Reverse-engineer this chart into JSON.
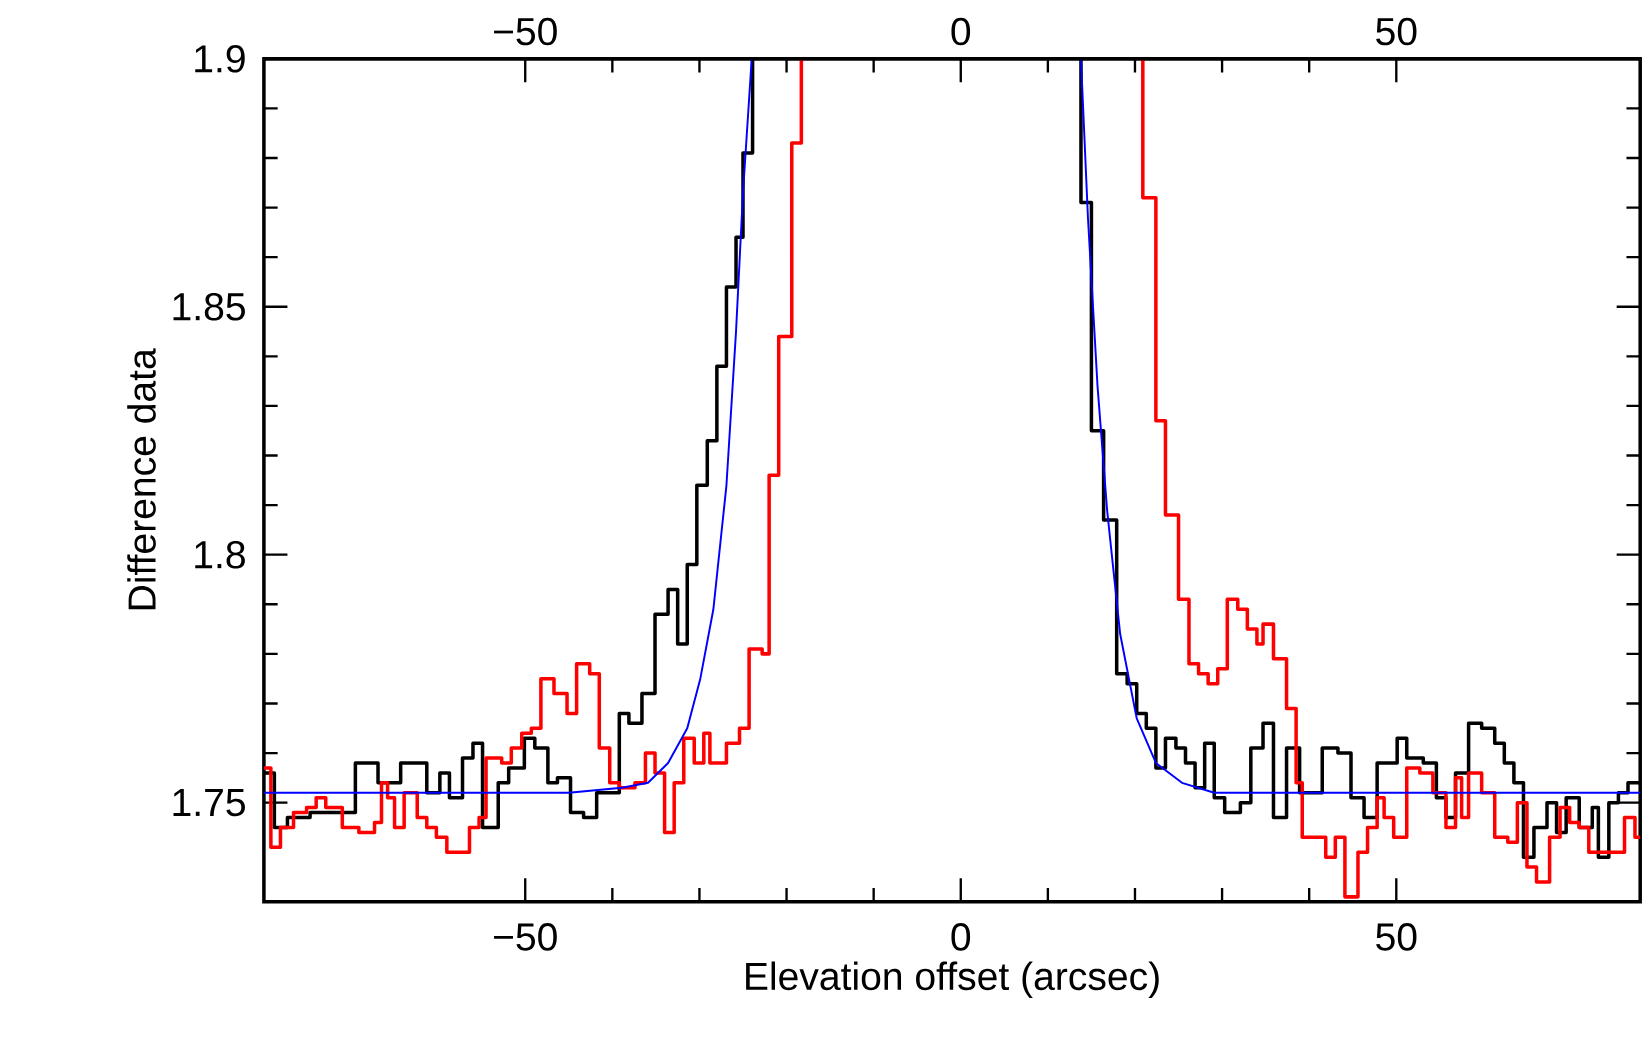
{
  "chart_data": {
    "type": "step",
    "xlabel": "Elevation offset (arcsec)",
    "ylabel": "Difference data",
    "xlim": [
      -80,
      78
    ],
    "ylim": [
      1.73,
      1.9
    ],
    "xticks": [
      {
        "value": -50,
        "label": "−50"
      },
      0,
      50
    ],
    "x2lim": [
      -80,
      78
    ],
    "x2ticks": [
      {
        "value": -50,
        "label": "−50"
      },
      0,
      50
    ],
    "yticks": [
      1.75,
      1.8,
      1.85,
      1.9
    ],
    "tick_labels": "xy",
    "series": [
      {
        "color": "#000000",
        "x": [
          -80.0,
          -78.8,
          -77.3,
          -74.7,
          -69.5,
          -66.9,
          -64.3,
          -61.3,
          -59.8,
          -58.7,
          -57.2,
          -56.0,
          -54.9,
          -53.1,
          -51.9,
          -50.1,
          -48.9,
          -47.4,
          -46.3,
          -44.8,
          -43.3,
          -41.8,
          -39.2,
          -38.1,
          -36.6,
          -35.1,
          -33.6,
          -32.5,
          -31.4,
          -30.3,
          -29.1,
          -28.0,
          -26.9,
          -25.8,
          -25.0,
          -23.9,
          0,
          13.8,
          13.8,
          15.0,
          16.4,
          17.9,
          19.1,
          20.2,
          21.3,
          22.4,
          23.5,
          24.7,
          25.8,
          26.9,
          28.0,
          29.1,
          30.3,
          32.1,
          33.3,
          34.7,
          35.9,
          37.4,
          38.9,
          41.5,
          43.3,
          44.8,
          46.3,
          47.8,
          50.1,
          51.2,
          53.1,
          54.6,
          55.7,
          56.8,
          58.3,
          59.8,
          61.3,
          62.4,
          63.5,
          64.6,
          65.8,
          67.3,
          68.4,
          69.5,
          71.0,
          72.5,
          73.2,
          74.4,
          75.5,
          76.6,
          78
        ],
        "values": [
          1.756,
          1.745,
          1.747,
          1.748,
          1.758,
          1.754,
          1.758,
          1.752,
          1.756,
          1.751,
          1.759,
          1.762,
          1.745,
          1.754,
          1.757,
          1.763,
          1.761,
          1.754,
          1.755,
          1.748,
          1.747,
          1.752,
          1.768,
          1.766,
          1.772,
          1.788,
          1.793,
          1.782,
          1.798,
          1.814,
          1.823,
          1.838,
          1.854,
          1.864,
          1.881,
          1.9,
          null,
          1.9,
          1.871,
          1.825,
          1.807,
          1.776,
          1.774,
          1.768,
          1.765,
          1.757,
          1.763,
          1.761,
          1.758,
          1.753,
          1.762,
          1.751,
          1.748,
          1.75,
          1.761,
          1.766,
          1.747,
          1.761,
          1.752,
          1.761,
          1.76,
          1.751,
          1.747,
          1.758,
          1.763,
          1.759,
          1.758,
          1.751,
          1.747,
          1.756,
          1.766,
          1.765,
          1.762,
          1.758,
          1.754,
          1.739,
          1.745,
          1.75,
          1.744,
          1.751,
          1.745,
          1.749,
          1.739,
          1.75,
          1.752,
          1.754,
          1.754
        ]
      },
      {
        "color": "#ff0000",
        "x": [
          -80.0,
          -79.2,
          -78.1,
          -76.6,
          -75.1,
          -74.0,
          -72.9,
          -71.0,
          -69.1,
          -67.3,
          -66.5,
          -65.8,
          -65.0,
          -63.9,
          -62.4,
          -61.3,
          -60.2,
          -59.0,
          -56.4,
          -55.3,
          -54.5,
          -52.7,
          -51.6,
          -50.4,
          -49.3,
          -48.2,
          -46.7,
          -45.2,
          -44.1,
          -42.6,
          -41.5,
          -40.3,
          -39.2,
          -37.4,
          -36.2,
          -35.1,
          -34.0,
          -32.9,
          -31.8,
          -30.6,
          -29.5,
          -28.8,
          -26.9,
          -25.4,
          -24.3,
          -22.8,
          -22.0,
          -20.9,
          -19.4,
          -18.3,
          0,
          20.9,
          20.9,
          22.4,
          23.5,
          25.0,
          26.2,
          27.3,
          28.4,
          29.5,
          30.6,
          31.8,
          32.9,
          34.0,
          34.7,
          35.9,
          37.4,
          38.5,
          39.2,
          41.9,
          43.0,
          44.1,
          45.6,
          46.7,
          47.8,
          48.6,
          49.7,
          51.2,
          52.7,
          54.2,
          55.7,
          56.8,
          57.5,
          58.3,
          59.8,
          61.3,
          62.8,
          63.9,
          65.0,
          66.1,
          67.6,
          68.8,
          69.9,
          71.0,
          72.1,
          73.6,
          74.7,
          76.2,
          77.4,
          78
        ],
        "values": [
          1.757,
          1.741,
          1.745,
          1.748,
          1.749,
          1.751,
          1.749,
          1.745,
          1.744,
          1.746,
          1.754,
          1.751,
          1.745,
          1.752,
          1.747,
          1.745,
          1.743,
          1.74,
          1.745,
          1.747,
          1.759,
          1.758,
          1.761,
          1.764,
          1.765,
          1.775,
          1.772,
          1.768,
          1.778,
          1.776,
          1.761,
          1.754,
          1.753,
          1.754,
          1.76,
          1.756,
          1.744,
          1.754,
          1.763,
          1.758,
          1.764,
          1.758,
          1.762,
          1.765,
          1.781,
          1.78,
          1.816,
          1.844,
          1.883,
          1.9,
          null,
          1.9,
          1.872,
          1.827,
          1.808,
          1.791,
          1.778,
          1.776,
          1.774,
          1.777,
          1.791,
          1.789,
          1.785,
          1.782,
          1.786,
          1.779,
          1.769,
          1.754,
          1.743,
          1.739,
          1.743,
          1.731,
          1.74,
          1.745,
          1.751,
          1.747,
          1.743,
          1.757,
          1.756,
          1.752,
          1.745,
          1.755,
          1.747,
          1.756,
          1.752,
          1.743,
          1.742,
          1.75,
          1.737,
          1.734,
          1.743,
          1.749,
          1.746,
          1.745,
          1.74,
          1.74,
          1.74,
          1.747,
          1.743,
          1.743
        ]
      },
      {
        "type": "line",
        "color": "#0000ff",
        "x": [
          -80,
          -45,
          -38.9,
          -35.9,
          -33.6,
          -31.4,
          -29.9,
          -28.4,
          -26.9,
          -25.8,
          -25.0,
          -24.0,
          0,
          13.8,
          14.6,
          15.7,
          16.8,
          18.3,
          20.2,
          22.4,
          25.4,
          29.1,
          78
        ],
        "values": [
          1.752,
          1.752,
          1.753,
          1.754,
          1.758,
          1.765,
          1.775,
          1.789,
          1.814,
          1.845,
          1.873,
          1.9,
          null,
          1.9,
          1.868,
          1.834,
          1.809,
          1.784,
          1.767,
          1.758,
          1.754,
          1.752,
          1.752
        ]
      }
    ]
  }
}
